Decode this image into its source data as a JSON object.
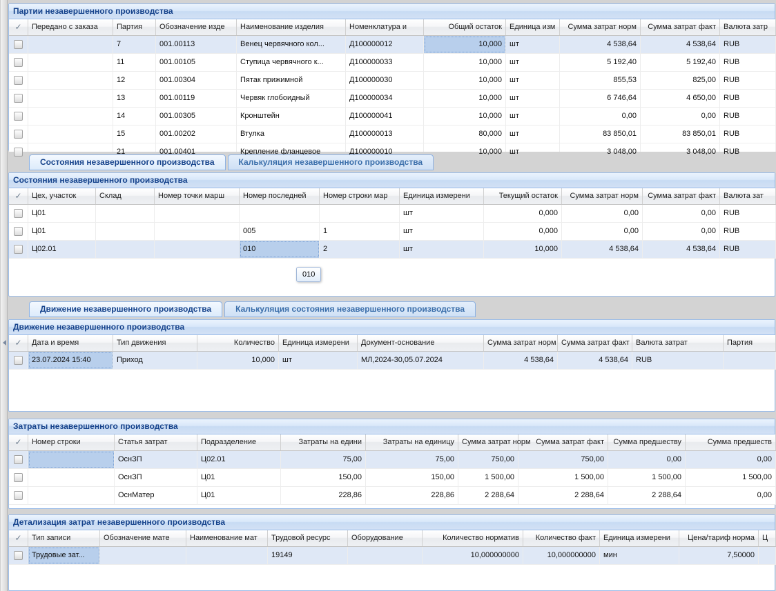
{
  "colors": {
    "panel_title_text": "#15428b",
    "panel_border": "#99bbe8",
    "tab_inactive_text": "#3a6eaa",
    "selected_row_bg": "#dfe8f6",
    "selected_cell_bg": "#b8cfec"
  },
  "icons": {
    "header_check": "✓",
    "collapse_left": "left-arrow"
  },
  "tooltip": {
    "text": "010"
  },
  "tab_groups": {
    "states": [
      {
        "label": "Состояния незавершенного производства",
        "active": true
      },
      {
        "label": "Калькуляция незавершенного производства",
        "active": false
      }
    ],
    "movement": [
      {
        "label": "Движение незавершенного производства",
        "active": true
      },
      {
        "label": "Калькуляция состояния незавершенного производства",
        "active": false
      }
    ]
  },
  "panels": {
    "batches": {
      "title": "Партии незавершенного производства",
      "columns": [
        {
          "check": true,
          "w": 28
        },
        {
          "label": "Передано с заказа",
          "w": 123
        },
        {
          "label": "Партия",
          "w": 62
        },
        {
          "label": "Обозначение изде",
          "w": 117
        },
        {
          "label": "Наименование изделия",
          "w": 158
        },
        {
          "label": "Номенклатура и",
          "w": 113
        },
        {
          "label": "Общий остаток",
          "w": 119,
          "align": "right"
        },
        {
          "label": "Единица изм",
          "w": 78
        },
        {
          "label": "Сумма затрат норм",
          "w": 117,
          "align": "right"
        },
        {
          "label": "Сумма затрат факт",
          "w": 115,
          "align": "right"
        },
        {
          "label": "Валюта затр",
          "w": 81
        }
      ],
      "rows": [
        {
          "cells": [
            "",
            "",
            "7",
            "001.00113",
            "Венец червячного кол...",
            "Д100000012",
            "10,000",
            "шт",
            "4 538,64",
            "4 538,64",
            "RUB"
          ],
          "selected": true,
          "selCell": 6
        },
        {
          "cells": [
            "",
            "",
            "11",
            "001.00105",
            "Ступица червячного к...",
            "Д100000033",
            "10,000",
            "шт",
            "5 192,40",
            "5 192,40",
            "RUB"
          ]
        },
        {
          "cells": [
            "",
            "",
            "12",
            "001.00304",
            "Пятак прижимной",
            "Д100000030",
            "10,000",
            "шт",
            "855,53",
            "825,00",
            "RUB"
          ]
        },
        {
          "cells": [
            "",
            "",
            "13",
            "001.00119",
            "Червяк глобоидный",
            "Д100000034",
            "10,000",
            "шт",
            "6 746,64",
            "4 650,00",
            "RUB"
          ]
        },
        {
          "cells": [
            "",
            "",
            "14",
            "001.00305",
            "Кронштейн",
            "Д100000041",
            "10,000",
            "шт",
            "0,00",
            "0,00",
            "RUB"
          ]
        },
        {
          "cells": [
            "",
            "",
            "15",
            "001.00202",
            "Втулка",
            "Д100000013",
            "80,000",
            "шт",
            "83 850,01",
            "83 850,01",
            "RUB"
          ]
        },
        {
          "cells": [
            "",
            "",
            "21",
            "001.00401",
            "Крепление фланцевое",
            "Д100000010",
            "10,000",
            "шт",
            "3 048,00",
            "3 048,00",
            "RUB"
          ],
          "partial": true
        }
      ]
    },
    "states": {
      "title": "Состояния незавершенного производства",
      "columns": [
        {
          "check": true,
          "w": 28
        },
        {
          "label": "Цех, участок",
          "w": 98
        },
        {
          "label": "Склад",
          "w": 85
        },
        {
          "label": "Номер точки марш",
          "w": 123
        },
        {
          "label": "Номер последней",
          "w": 116
        },
        {
          "label": "Номер строки мар",
          "w": 116
        },
        {
          "label": "Единица измерени",
          "w": 122
        },
        {
          "label": "Текущий остаток",
          "w": 113,
          "align": "right"
        },
        {
          "label": "Сумма затрат норм",
          "w": 117,
          "align": "right"
        },
        {
          "label": "Сумма затрат факт",
          "w": 112,
          "align": "right"
        },
        {
          "label": "Валюта зат",
          "w": 81
        }
      ],
      "rows": [
        {
          "cells": [
            "",
            "Ц01",
            "",
            "",
            "",
            "",
            "шт",
            "0,000",
            "0,00",
            "0,00",
            "RUB"
          ]
        },
        {
          "cells": [
            "",
            "Ц01",
            "",
            "",
            "005",
            "1",
            "шт",
            "0,000",
            "0,00",
            "0,00",
            "RUB"
          ]
        },
        {
          "cells": [
            "",
            "Ц02.01",
            "",
            "",
            "010",
            "2",
            "шт",
            "10,000",
            "4 538,64",
            "4 538,64",
            "RUB"
          ],
          "selected": true,
          "selCell": 4
        }
      ]
    },
    "movement": {
      "title": "Движение незавершенного производства",
      "columns": [
        {
          "check": true,
          "w": 28
        },
        {
          "label": "Дата и время",
          "w": 123
        },
        {
          "label": "Тип движения",
          "w": 122
        },
        {
          "label": "Количество",
          "w": 118,
          "align": "right"
        },
        {
          "label": "Единица измерени",
          "w": 114
        },
        {
          "label": "Документ-основание",
          "w": 183
        },
        {
          "label": "Сумма затрат норм",
          "w": 107,
          "align": "right"
        },
        {
          "label": "Сумма затрат факт",
          "w": 108,
          "align": "right"
        },
        {
          "label": "Валюта затрат",
          "w": 132
        },
        {
          "label": "Партия",
          "w": 76
        }
      ],
      "rows": [
        {
          "cells": [
            "",
            "23.07.2024 15:40",
            "Приход",
            "10,000",
            "шт",
            "МЛ,2024-30,05.07.2024",
            "4 538,64",
            "4 538,64",
            "RUB",
            ""
          ],
          "selected": true,
          "selCell": 1
        }
      ]
    },
    "costs": {
      "title": "Затраты незавершенного производства",
      "columns": [
        {
          "check": true,
          "w": 28
        },
        {
          "label": "Номер строки",
          "w": 125
        },
        {
          "label": "Статья затрат",
          "w": 120
        },
        {
          "label": "Подразделение",
          "w": 121
        },
        {
          "label": "Затраты на едини",
          "w": 123,
          "align": "right"
        },
        {
          "label": "Затраты на единицу",
          "w": 134,
          "align": "right"
        },
        {
          "label": "Сумма затрат норм",
          "w": 87,
          "align": "right"
        },
        {
          "label": "Сумма затрат факт",
          "w": 130,
          "align": "right"
        },
        {
          "label": "Сумма предшеству",
          "w": 112,
          "align": "right"
        },
        {
          "label": "Сумма предшеств",
          "w": 131,
          "align": "right"
        }
      ],
      "rows": [
        {
          "cells": [
            "",
            "",
            "ОснЗП",
            "Ц02.01",
            "75,00",
            "75,00",
            "750,00",
            "750,00",
            "0,00",
            "0,00"
          ],
          "selected": true,
          "selCell": 1
        },
        {
          "cells": [
            "",
            "",
            "ОснЗП",
            "Ц01",
            "150,00",
            "150,00",
            "1 500,00",
            "1 500,00",
            "1 500,00",
            "1 500,00"
          ]
        },
        {
          "cells": [
            "",
            "",
            "ОснМатер",
            "Ц01",
            "228,86",
            "228,86",
            "2 288,64",
            "2 288,64",
            "2 288,64",
            "0,00"
          ]
        }
      ]
    },
    "cost_details": {
      "title": "Детализация затрат незавершенного производства",
      "columns": [
        {
          "check": true,
          "w": 28
        },
        {
          "label": "Тип записи",
          "w": 104
        },
        {
          "label": "Обозначение мате",
          "w": 125
        },
        {
          "label": "Наименование мат",
          "w": 118
        },
        {
          "label": "Трудовой ресурс",
          "w": 116
        },
        {
          "label": "Оборудование",
          "w": 108
        },
        {
          "label": "Количество норматив",
          "w": 146,
          "align": "right"
        },
        {
          "label": "Количество факт",
          "w": 111,
          "align": "right"
        },
        {
          "label": "Единица измерени",
          "w": 115
        },
        {
          "label": "Цена/тариф норма",
          "w": 115,
          "align": "right"
        },
        {
          "label": "Ц",
          "w": 25
        }
      ],
      "rows": [
        {
          "cells": [
            "",
            "Трудовые зат...",
            "",
            "",
            "19149",
            "",
            "10,000000000",
            "10,000000000",
            "мин",
            "7,50000",
            ""
          ],
          "selected": true,
          "selCell": 1
        }
      ]
    }
  }
}
